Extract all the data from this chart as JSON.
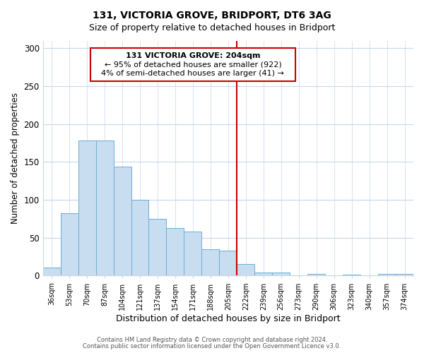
{
  "title1": "131, VICTORIA GROVE, BRIDPORT, DT6 3AG",
  "title2": "Size of property relative to detached houses in Bridport",
  "xlabel": "Distribution of detached houses by size in Bridport",
  "ylabel": "Number of detached properties",
  "bar_labels": [
    "36sqm",
    "53sqm",
    "70sqm",
    "87sqm",
    "104sqm",
    "121sqm",
    "137sqm",
    "154sqm",
    "171sqm",
    "188sqm",
    "205sqm",
    "222sqm",
    "239sqm",
    "256sqm",
    "273sqm",
    "290sqm",
    "306sqm",
    "323sqm",
    "340sqm",
    "357sqm",
    "374sqm"
  ],
  "bar_values": [
    11,
    82,
    178,
    178,
    144,
    100,
    75,
    63,
    58,
    35,
    33,
    15,
    4,
    4,
    0,
    2,
    0,
    1,
    0,
    2,
    2
  ],
  "bar_color": "#c8ddf0",
  "bar_edge_color": "#6aaed6",
  "vline_color": "#cc0000",
  "ylim": [
    0,
    310
  ],
  "yticks": [
    0,
    50,
    100,
    150,
    200,
    250,
    300
  ],
  "annotation_title": "131 VICTORIA GROVE: 204sqm",
  "annotation_line1": "← 95% of detached houses are smaller (922)",
  "annotation_line2": "4% of semi-detached houses are larger (41) →",
  "annotation_box_color": "#ffffff",
  "annotation_box_edge": "#cc0000",
  "footer1": "Contains HM Land Registry data © Crown copyright and database right 2024.",
  "footer2": "Contains public sector information licensed under the Open Government Licence v3.0.",
  "background_color": "#ffffff",
  "grid_color": "#c8d8e8"
}
